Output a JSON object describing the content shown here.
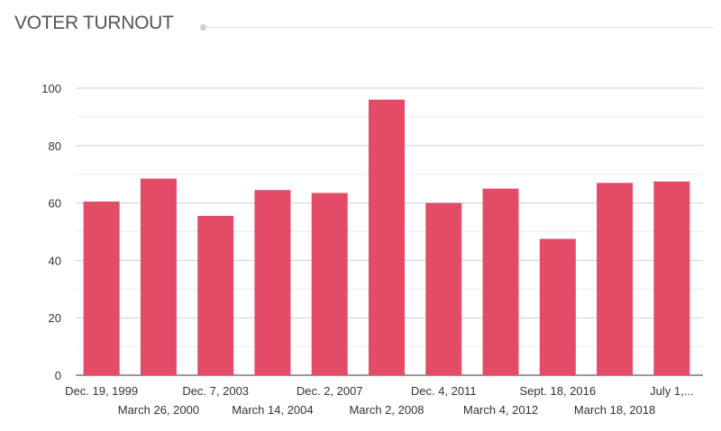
{
  "chart_data": {
    "type": "bar",
    "title": "VOTER TURNOUT",
    "xlabel": "",
    "ylabel": "",
    "ylim": [
      0,
      100
    ],
    "yticks": [
      0,
      20,
      40,
      60,
      80,
      100
    ],
    "grid": true,
    "bar_color": "#e34b66",
    "categories": [
      "Dec. 19, 1999",
      "March 26, 2000",
      "Dec. 7, 2003",
      "March 14, 2004",
      "Dec. 2, 2007",
      "March 2, 2008",
      "Dec. 4, 2011",
      "March 4, 2012",
      "Sept. 18, 2016",
      "March 18, 2018",
      "July 1,..."
    ],
    "values": [
      60.5,
      68.5,
      55.5,
      64.5,
      63.5,
      96,
      60,
      65,
      47.5,
      67,
      67.5
    ]
  }
}
